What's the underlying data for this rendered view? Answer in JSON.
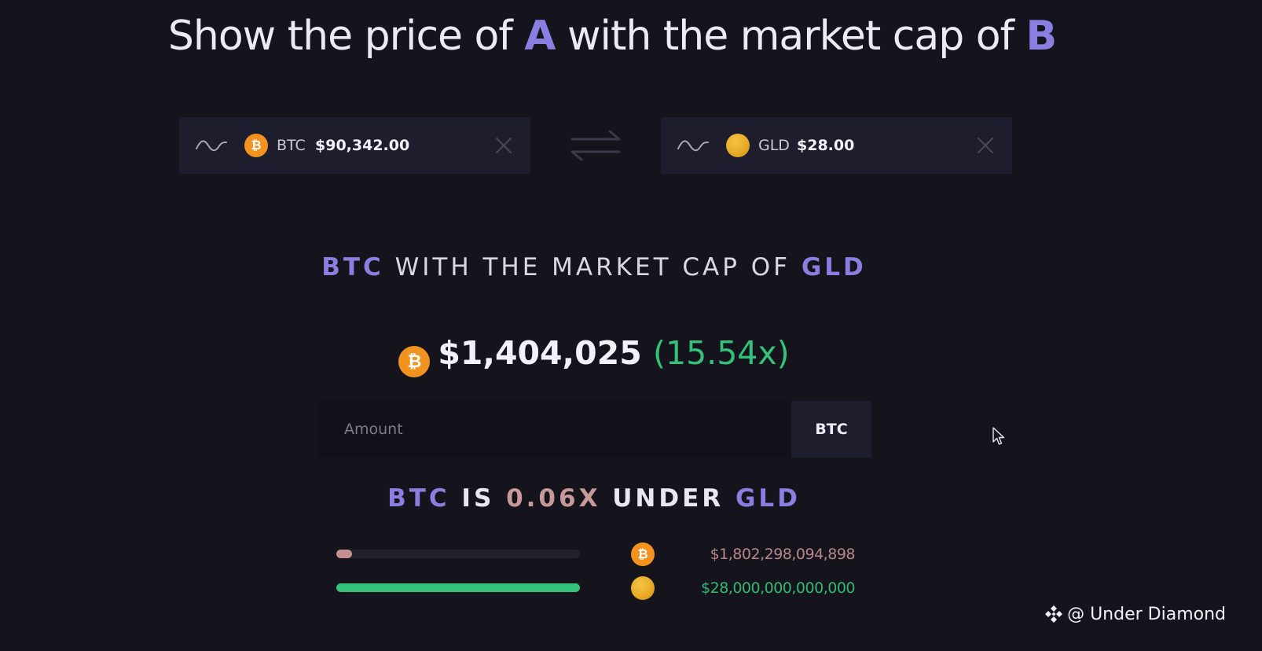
{
  "header": {
    "prefix": "Show the price of ",
    "token_a": "A",
    "middle": " with the market cap of ",
    "token_b": "B"
  },
  "picker_a": {
    "icon": "sparkline-icon",
    "coin_icon": "bitcoin-icon",
    "symbol": "BTC",
    "price": "$90,342.00",
    "clear_icon": "close-icon"
  },
  "swap": {
    "icon": "swap-arrows-icon"
  },
  "picker_b": {
    "icon": "sparkline-icon",
    "coin_icon": "gold-coin-icon",
    "symbol": "GLD",
    "price": "$28.00",
    "clear_icon": "close-icon"
  },
  "comparison": {
    "symbol_a": "BTC",
    "phrase": " WITH THE MARKET CAP OF ",
    "symbol_b": "GLD"
  },
  "result": {
    "coin_glyph": "₿",
    "price": "$1,404,025",
    "multiplier": "(15.54x)"
  },
  "amount": {
    "placeholder": "Amount",
    "value": "",
    "unit": "BTC"
  },
  "ratio_line": {
    "symbol_a": "BTC",
    "is": " IS ",
    "ratio": "0.06X",
    "under": " UNDER ",
    "symbol_b": "GLD"
  },
  "market_caps": [
    {
      "symbol": "BTC",
      "coin_icon": "bitcoin-icon",
      "value": "$1,802,298,094,898",
      "fraction": 0.064,
      "color": "#c48e92"
    },
    {
      "symbol": "GLD",
      "coin_icon": "gold-coin-icon",
      "value": "$28,000,000,000,000",
      "fraction": 1.0,
      "color": "#33c27a"
    }
  ],
  "colors": {
    "background": "#15141d",
    "accent": "#8a7ee0",
    "positive": "#33c27a",
    "btc_orange": "#f2931f"
  },
  "watermark": {
    "icon": "binance-diamond-icon",
    "text": "@ Under Diamond"
  }
}
